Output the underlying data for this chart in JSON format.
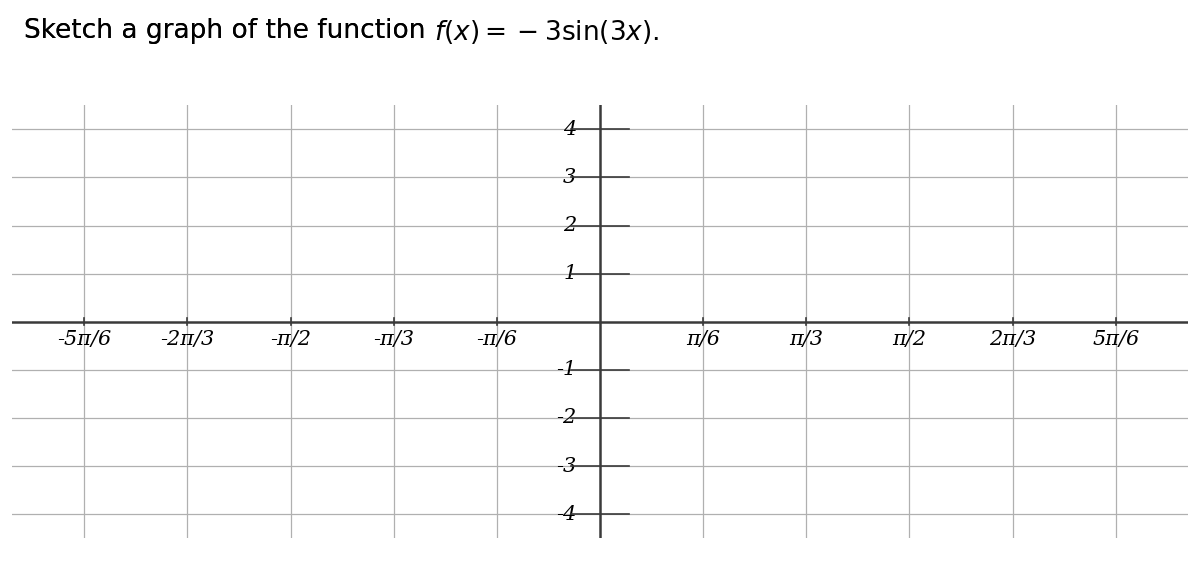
{
  "title_plain": "Sketch a graph of the function ",
  "title_math": "$f(x) = -3\\sin(3x)$.",
  "x_tick_multiples": [
    -5,
    -4,
    -3,
    -2,
    -1,
    1,
    2,
    3,
    4,
    5
  ],
  "x_tick_labels": [
    "-5π/6",
    "-2π/3",
    "-π/2",
    "-π/3",
    "-π/6",
    "π/6",
    "π/3",
    "π/2",
    "2π/3",
    "5π/6"
  ],
  "y_ticks": [
    -4,
    -3,
    -2,
    -1,
    1,
    2,
    3,
    4
  ],
  "y_tick_labels": [
    "-4",
    "-3",
    "-2",
    "-1",
    "1",
    "2",
    "3",
    "4"
  ],
  "xlim_mult": [
    -5.7,
    5.7
  ],
  "ylim": [
    -4.5,
    4.5
  ],
  "grid_color": "#b0b0b0",
  "axis_color": "#3a3a3a",
  "bg_color": "#ffffff",
  "title_fontsize": 19,
  "tick_fontsize": 15,
  "grid_linewidth": 0.9,
  "axis_linewidth": 1.8
}
